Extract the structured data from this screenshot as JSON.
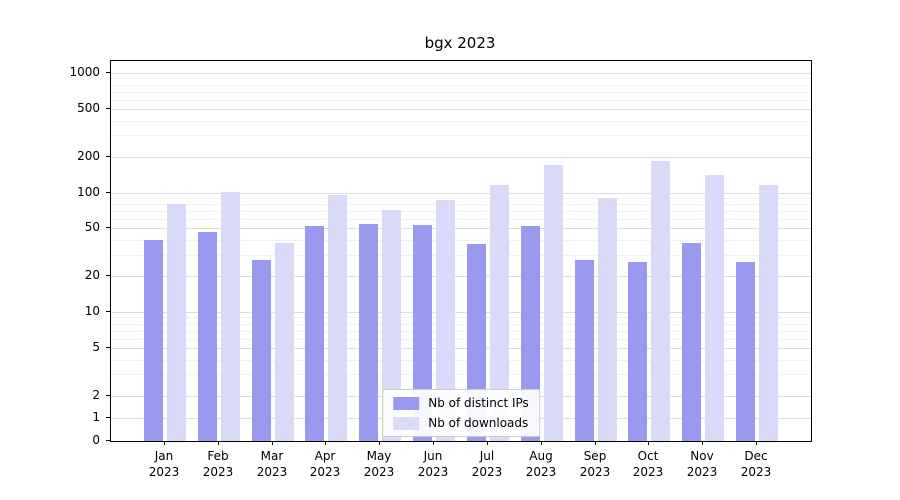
{
  "chart_data": {
    "type": "bar",
    "title": "bgx 2023",
    "x_categories": [
      "Jan",
      "Feb",
      "Mar",
      "Apr",
      "May",
      "Jun",
      "Jul",
      "Aug",
      "Sep",
      "Oct",
      "Nov",
      "Dec"
    ],
    "x_year": "2023",
    "series": [
      {
        "name": "Nb of distinct IPs",
        "color": "#9999ee",
        "values": [
          40,
          47,
          27,
          52,
          55,
          53,
          37,
          52,
          27,
          26,
          38,
          26
        ]
      },
      {
        "name": "Nb of downloads",
        "color": "#d9d9f8",
        "values": [
          80,
          100,
          38,
          95,
          72,
          86,
          115,
          170,
          90,
          185,
          140,
          115
        ]
      }
    ],
    "y_ticks": [
      0,
      1,
      2,
      5,
      10,
      20,
      50,
      100,
      200,
      500,
      1000
    ],
    "y_scale": "symlog",
    "ylim": [
      0,
      1000
    ],
    "grid": true,
    "legend_position": "lower center"
  }
}
